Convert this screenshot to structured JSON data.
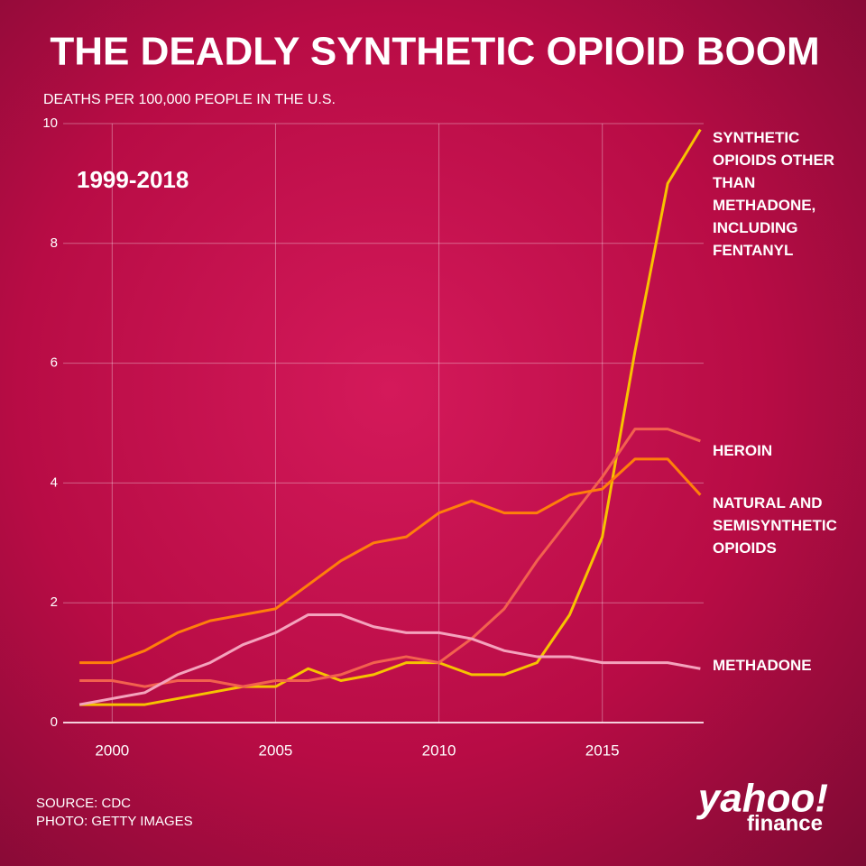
{
  "chart_data": {
    "type": "line",
    "title": "THE DEADLY SYNTHETIC OPIOID BOOM",
    "subtitle": "DEATHS PER 100,000 PEOPLE IN THE U.S.",
    "annotation": "1999-2018",
    "source": "SOURCE:  CDC",
    "photo_credit": "PHOTO: GETTY IMAGES",
    "logo": {
      "brand": "yahoo!",
      "sub": "finance"
    },
    "x": [
      1999,
      2000,
      2001,
      2002,
      2003,
      2004,
      2005,
      2006,
      2007,
      2008,
      2009,
      2010,
      2011,
      2012,
      2013,
      2014,
      2015,
      2016,
      2017,
      2018
    ],
    "xlim": [
      1998.5,
      2018.1
    ],
    "xticks": [
      2000,
      2005,
      2010,
      2015
    ],
    "ylim": [
      0,
      10
    ],
    "yticks": [
      0,
      2,
      4,
      6,
      8,
      10
    ],
    "grid": true,
    "series": [
      {
        "name": "SYNTHETIC OPIOIDS OTHER THAN METHADONE, INCLUDING FENTANYL",
        "color": "#f7c300",
        "values": [
          0.3,
          0.3,
          0.3,
          0.4,
          0.5,
          0.6,
          0.6,
          0.9,
          0.7,
          0.8,
          1.0,
          1.0,
          0.8,
          0.8,
          1.0,
          1.8,
          3.1,
          6.2,
          9.0,
          9.9
        ]
      },
      {
        "name": "HEROIN",
        "color": "#f2614e",
        "values": [
          0.7,
          0.7,
          0.6,
          0.7,
          0.7,
          0.6,
          0.7,
          0.7,
          0.8,
          1.0,
          1.1,
          1.0,
          1.4,
          1.9,
          2.7,
          3.4,
          4.1,
          4.9,
          4.9,
          4.7
        ]
      },
      {
        "name": "NATURAL AND SEMISYNTHETIC OPIOIDS",
        "color": "#ff7f0a",
        "values": [
          1.0,
          1.0,
          1.2,
          1.5,
          1.7,
          1.8,
          1.9,
          2.3,
          2.7,
          3.0,
          3.1,
          3.5,
          3.7,
          3.5,
          3.5,
          3.8,
          3.9,
          4.4,
          4.4,
          3.8
        ]
      },
      {
        "name": "METHADONE",
        "color": "#f4a3bd",
        "values": [
          0.3,
          0.4,
          0.5,
          0.8,
          1.0,
          1.3,
          1.5,
          1.8,
          1.8,
          1.6,
          1.5,
          1.5,
          1.4,
          1.2,
          1.1,
          1.1,
          1.0,
          1.0,
          1.0,
          0.9
        ]
      }
    ]
  }
}
